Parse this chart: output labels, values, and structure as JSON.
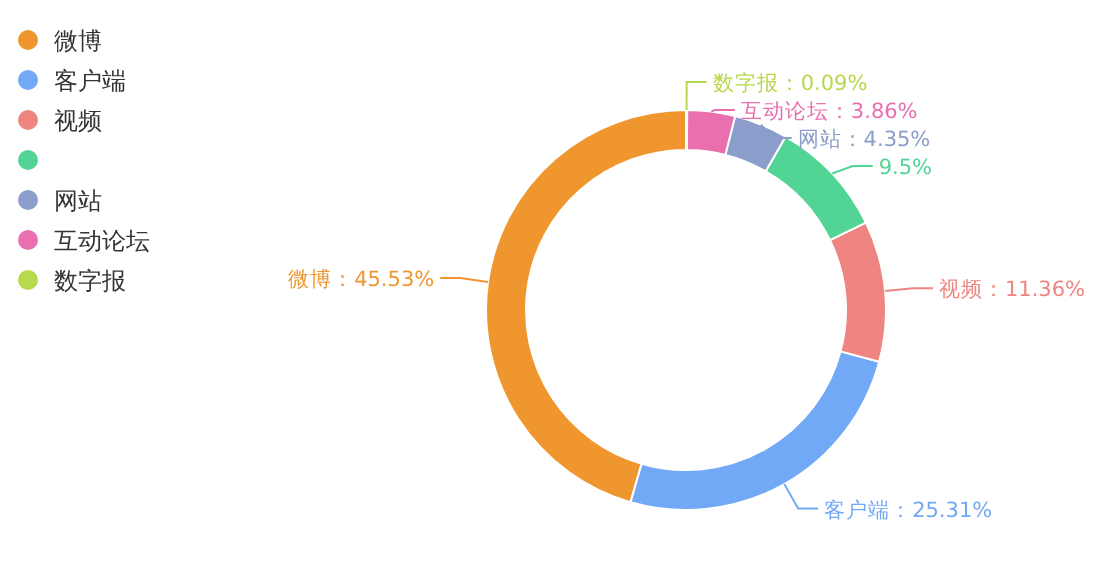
{
  "chart_data": {
    "type": "donut",
    "categories": [
      "微博",
      "客户端",
      "视频",
      null,
      "网站",
      "互动论坛",
      "数字报"
    ],
    "values": [
      45.53,
      25.31,
      11.36,
      9.5,
      4.35,
      3.86,
      0.09
    ],
    "colors": [
      "#f0962f",
      "#71a9f7",
      "#ef8580",
      "#52d494",
      "#8b9dcb",
      "#e96fae",
      "#b8d84d"
    ],
    "value_labels": [
      "微博：45.53%",
      "客户端：25.31%",
      "视频：11.36%",
      "9.5%",
      "网站：4.35%",
      "互动论坛：3.86%",
      "数字报：0.09%"
    ],
    "legend": "top left"
  }
}
